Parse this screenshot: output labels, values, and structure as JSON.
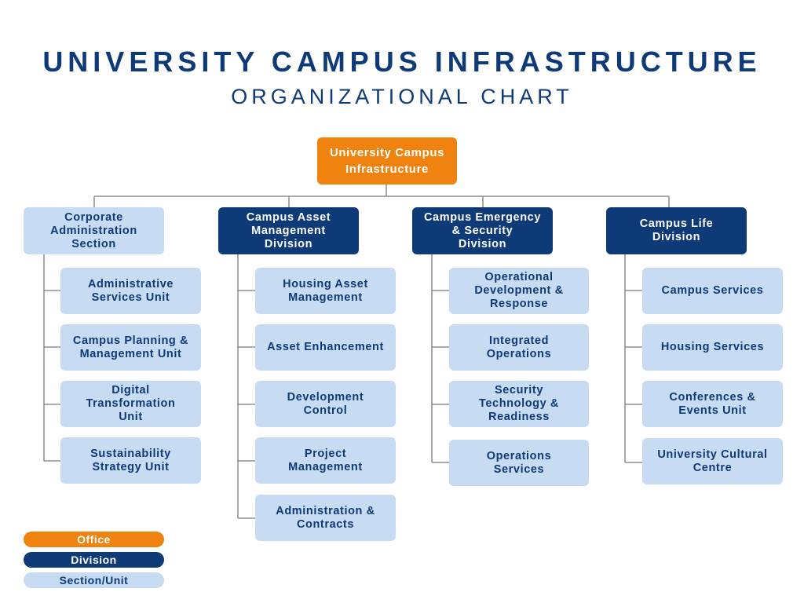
{
  "title": "UNIVERSITY CAMPUS INFRASTRUCTURE",
  "subtitle": "ORGANIZATIONAL CHART",
  "root": "University Campus\nInfrastructure",
  "columns": [
    {
      "division": "Corporate\nAdministration\nSection",
      "division_type": "unit",
      "units": [
        "Administrative\nServices Unit",
        "Campus Planning &\nManagement Unit",
        "Digital\nTransformation\nUnit",
        "Sustainability\nStrategy Unit"
      ]
    },
    {
      "division": "Campus Asset\nManagement\nDivision",
      "division_type": "division",
      "units": [
        "Housing Asset\nManagement",
        "Asset Enhancement",
        "Development\nControl",
        "Project\nManagement",
        "Administration &\nContracts"
      ]
    },
    {
      "division": "Campus Emergency\n& Security\nDivision",
      "division_type": "division",
      "units": [
        "Operational\nDevelopment &\nResponse",
        "Integrated\nOperations",
        "Security\nTechnology &\nReadiness",
        "Operations\nServices"
      ]
    },
    {
      "division": "Campus Life\nDivision",
      "division_type": "division",
      "units": [
        "Campus Services",
        "Housing Services",
        "Conferences &\nEvents Unit",
        "University Cultural\nCentre"
      ]
    }
  ],
  "legend": {
    "office": "Office",
    "division": "Division",
    "section_unit": "Section/Unit"
  },
  "colors": {
    "office": "#f0820f",
    "division": "#0e3a78",
    "unit": "#c7dbf2",
    "connector": "#7a7a7a"
  }
}
